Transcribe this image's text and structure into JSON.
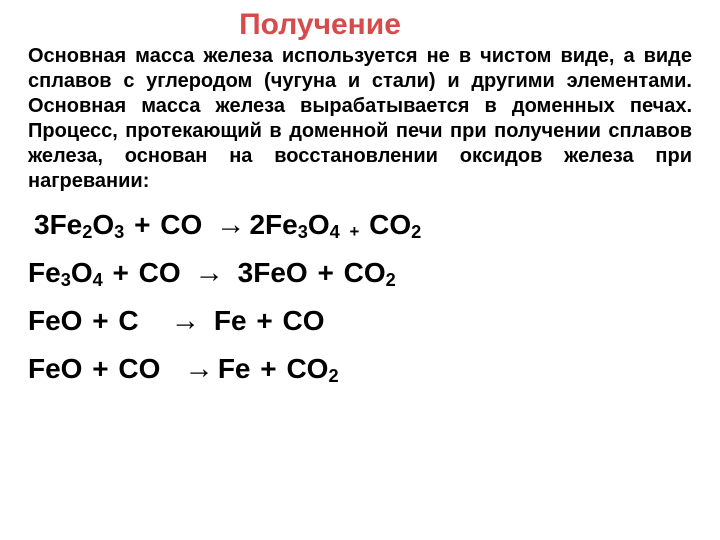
{
  "title": {
    "text": "Получение",
    "color": "#d64b4b"
  },
  "paragraph": "Основная масса железа используется не в чистом виде, а виде сплавов с углеродом (чугуна и стали) и другими элементами. Основная масса железа вырабатывается в доменных печах. Процесс, протекающий в доменной печи при получении сплавов железа, основан на восстановлении оксидов железа при нагревании:",
  "equations": {
    "eq1": {
      "lhs_coeff": "3",
      "lhs1": "Fe",
      "lhs1_sub1": "2",
      "lhs1b": "O",
      "lhs1_sub2": "3",
      "plus": "+",
      "lhs2": "CO",
      "arrow": "→",
      "rhs_coeff": "2",
      "rhs1": "Fe",
      "rhs1_sub1": "3",
      "rhs1b": "O",
      "rhs1_sub2": "4",
      "small_plus": "+",
      "rhs2": "CO",
      "rhs2_sub": "2"
    },
    "eq2": {
      "lhs1": "Fe",
      "lhs1_sub1": "3",
      "lhs1b": "O",
      "lhs1_sub2": "4",
      "plus": "+",
      "lhs2": "CO",
      "arrow": "→",
      "rhs_coeff": "3",
      "rhs1": "FeO",
      "plus2": "+",
      "rhs2": "CO",
      "rhs2_sub": "2"
    },
    "eq3": {
      "lhs1": "FeO",
      "plus": "+",
      "lhs2": "C",
      "arrow": "→",
      "rhs1": "Fe",
      "plus2": "+",
      "rhs2": "CO"
    },
    "eq4": {
      "lhs1": "FeO",
      "plus": "+",
      "lhs2": "CO",
      "arrow": "→",
      "rhs1": "Fe",
      "plus2": "+",
      "rhs2": "CO",
      "rhs2_sub": "2"
    }
  },
  "colors": {
    "text": "#000000",
    "title": "#d64b4b",
    "background": "#ffffff"
  }
}
